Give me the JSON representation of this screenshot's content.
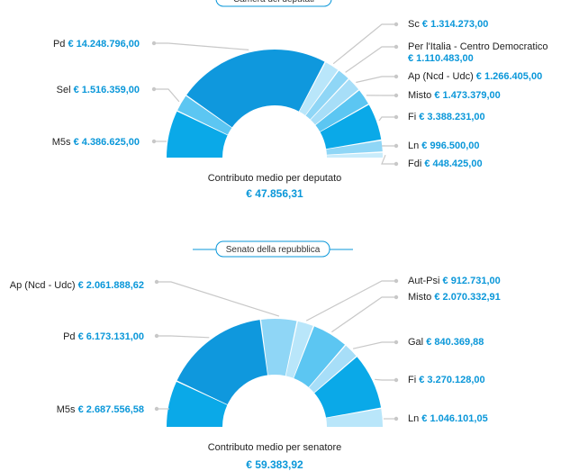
{
  "chart_data": [
    {
      "type": "pie",
      "title": "Camera dei deputati",
      "series": [
        {
          "name": "M5s",
          "label": "M5s",
          "value": 4386625.0,
          "value_text": "€ 4.386.625,00",
          "color": "#0aa9e8"
        },
        {
          "name": "Sel",
          "label": "Sel",
          "value": 1516359.0,
          "value_text": "€ 1.516.359,00",
          "color": "#5cc6f2"
        },
        {
          "name": "Pd",
          "label": "Pd",
          "value": 14248796.0,
          "value_text": "€ 14.248.796,00",
          "color": "#0f98dd"
        },
        {
          "name": "Sc",
          "label": "Sc",
          "value": 1314273.0,
          "value_text": "€ 1.314.273,00",
          "color": "#b9e6fa"
        },
        {
          "name": "Per l'Italia - Centro Democratico",
          "label": "Per l'Italia - Centro Democratico",
          "value": 1110483.0,
          "value_text": "€ 1.110.483,00",
          "color": "#8fd6f6"
        },
        {
          "name": "Ap (Ncd - Udc)",
          "label": "Ap (Ncd - Udc)",
          "value": 1266405.0,
          "value_text": "€ 1.266.405,00",
          "color": "#a7def8"
        },
        {
          "name": "Misto",
          "label": "Misto",
          "value": 1473379.0,
          "value_text": "€ 1.473.379,00",
          "color": "#5cc6f2"
        },
        {
          "name": "Fi",
          "label": "Fi",
          "value": 3388231.0,
          "value_text": "€ 3.388.231,00",
          "color": "#0aa9e8"
        },
        {
          "name": "Ln",
          "label": "Ln",
          "value": 996500.0,
          "value_text": "€ 996.500,00",
          "color": "#8fd6f6"
        },
        {
          "name": "Fdi",
          "label": "Fdi",
          "value": 448425.0,
          "value_text": "€ 448.425,00",
          "color": "#c9ecfb"
        }
      ],
      "average_label": "Contributo medio per deputato",
      "average_value": "€ 47.856,31"
    },
    {
      "type": "pie",
      "title": "Senato della repubblica",
      "series": [
        {
          "name": "M5s",
          "label": "M5s",
          "value": 2687556.58,
          "value_text": "€ 2.687.556,58",
          "color": "#0aa9e8"
        },
        {
          "name": "Pd",
          "label": "Pd",
          "value": 6173131.0,
          "value_text": "€ 6.173.131,00",
          "color": "#0f98dd"
        },
        {
          "name": "Ap (Ncd - Udc)",
          "label": "Ap (Ncd - Udc)",
          "value": 2061888.62,
          "value_text": "€ 2.061.888,62",
          "color": "#8fd6f6"
        },
        {
          "name": "Aut-Psi",
          "label": "Aut-Psi",
          "value": 912731.0,
          "value_text": "€ 912.731,00",
          "color": "#b9e6fa"
        },
        {
          "name": "Misto",
          "label": "Misto",
          "value": 2070332.91,
          "value_text": "€ 2.070.332,91",
          "color": "#5cc6f2"
        },
        {
          "name": "Gal",
          "label": "Gal",
          "value": 840369.88,
          "value_text": "€ 840.369,88",
          "color": "#a7def8"
        },
        {
          "name": "Fi",
          "label": "Fi",
          "value": 3270128.0,
          "value_text": "€ 3.270.128,00",
          "color": "#0aa9e8"
        },
        {
          "name": "Ln",
          "label": "Ln",
          "value": 1046101.05,
          "value_text": "€ 1.046.101,05",
          "color": "#b9e6fa"
        }
      ],
      "average_label": "Contributo medio per senatore",
      "average_value": "€ 59.383,92"
    }
  ]
}
